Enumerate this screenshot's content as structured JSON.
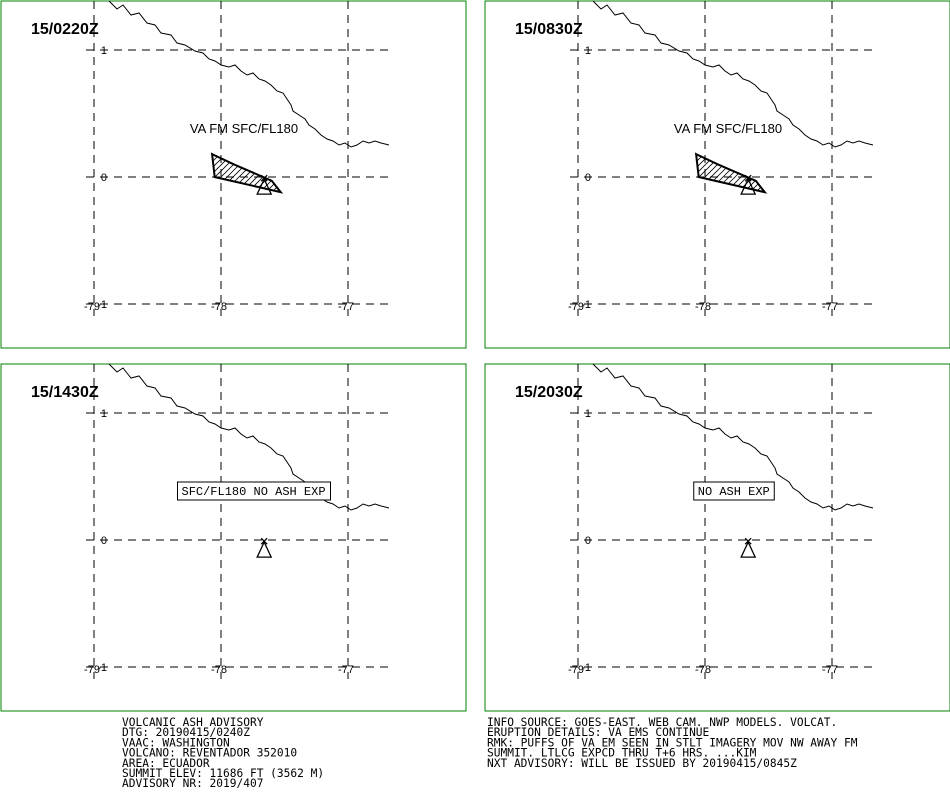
{
  "panels": [
    {
      "time": "15/0220Z",
      "ash_label": "VA FM SFC/FL180",
      "ash_label_boxed": false,
      "ash_polygon": [
        [
          -78.07,
          0.18
        ],
        [
          -77.9,
          0.1
        ],
        [
          -77.6,
          -0.03
        ],
        [
          -77.53,
          -0.12
        ],
        [
          -78.05,
          0.0
        ]
      ],
      "volcano": {
        "lon": -77.66,
        "lat": -0.08
      }
    },
    {
      "time": "15/0830Z",
      "ash_label": "VA FM SFC/FL180",
      "ash_label_boxed": false,
      "ash_polygon": [
        [
          -78.07,
          0.18
        ],
        [
          -77.9,
          0.1
        ],
        [
          -77.6,
          -0.03
        ],
        [
          -77.53,
          -0.12
        ],
        [
          -78.05,
          0.0
        ]
      ],
      "volcano": {
        "lon": -77.66,
        "lat": -0.08
      }
    },
    {
      "time": "15/1430Z",
      "ash_label": "SFC/FL180 NO ASH EXP",
      "ash_label_boxed": true,
      "ash_polygon": [],
      "volcano": {
        "lon": -77.66,
        "lat": -0.08
      }
    },
    {
      "time": "15/2030Z",
      "ash_label": "NO ASH EXP",
      "ash_label_boxed": true,
      "ash_polygon": [],
      "volcano": {
        "lon": -77.66,
        "lat": -0.08
      }
    }
  ],
  "axes": {
    "lon_ticks": [
      "-79",
      "-78",
      "-77"
    ],
    "lat_ticks": [
      "1",
      "0",
      "-1"
    ],
    "lon_values": [
      -79,
      -78,
      -77
    ],
    "lat_values": [
      1,
      0,
      -1
    ]
  },
  "advisory_left": [
    "VOLCANIC ASH ADVISORY",
    "DTG: 20190415/0240Z",
    "VAAC: WASHINGTON",
    "VOLCANO: REVENTADOR 352010",
    "AREA: ECUADOR",
    "SUMMIT ELEV: 11686 FT (3562 M)",
    "ADVISORY NR: 2019/407"
  ],
  "advisory_right": [
    "INFO SOURCE: GOES-EAST. WEB CAM. NWP MODELS. VOLCAT.",
    "ERUPTION DETAILS: VA EMS CONTINUE",
    "RMK: PUFFS OF VA EM SEEN IN STLT IMAGERY MOV NW AWAY FM",
    "SUMMIT. LTLCG EXPCD THRU T+6 HRS. ...KIM",
    "NXT ADVISORY: WILL BE ISSUED BY 20190415/0845Z"
  ]
}
